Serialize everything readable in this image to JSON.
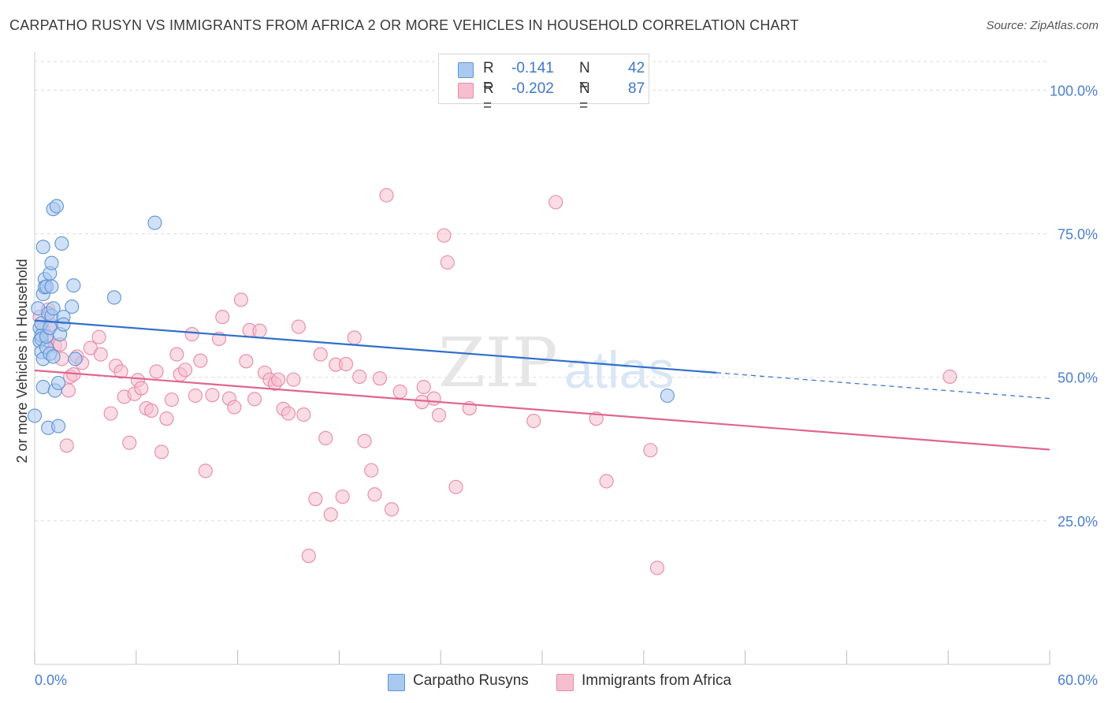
{
  "title": "CARPATHO RUSYN VS IMMIGRANTS FROM AFRICA 2 OR MORE VEHICLES IN HOUSEHOLD CORRELATION CHART",
  "source": "Source: ZipAtlas.com",
  "watermark": {
    "zip": "ZIP",
    "atlas": "atlas"
  },
  "colors": {
    "blue_fill": "#a9c9f0",
    "blue_stroke": "#5f93d6",
    "blue_line": "#2f6fcb",
    "pink_fill": "#f5bfd0",
    "pink_stroke": "#e889a8",
    "pink_line": "#e06590",
    "tick_label": "#4a7fcf",
    "grid": "#dcdcdc"
  },
  "legend_top": [
    {
      "series": "Carpatho Rusyns",
      "r_label": "R =",
      "r_value": "-0.141",
      "n_label": "N =",
      "n_value": "42"
    },
    {
      "series": "Immigrants from Africa",
      "r_label": "R =",
      "r_value": "-0.202",
      "n_label": "N =",
      "n_value": "87"
    }
  ],
  "chart_data": {
    "type": "scatter",
    "title": "CARPATHO RUSYN VS IMMIGRANTS FROM AFRICA 2 OR MORE VEHICLES IN HOUSEHOLD CORRELATION CHART",
    "xlabel": "",
    "ylabel": "2 or more Vehicles in Household",
    "xlim": [
      0,
      60
    ],
    "ylim": [
      0,
      105
    ],
    "x_tick_labels": [
      "0.0%",
      "60.0%"
    ],
    "y_ticks": [
      25,
      50,
      75,
      100
    ],
    "y_tick_labels": [
      "25.0%",
      "50.0%",
      "75.0%",
      "100.0%"
    ],
    "grid": true,
    "legend_position": "bottom",
    "series": [
      {
        "name": "Carpatho Rusyns",
        "color": "blue",
        "trend": {
          "x0": 0,
          "y0": 59.9,
          "x1": 40.3,
          "y1": 50.8,
          "dashed_to_x": 60,
          "dashed_to_y": 46.3
        },
        "points": [
          [
            0.0,
            43.3
          ],
          [
            0.2,
            62.0
          ],
          [
            0.3,
            56.3
          ],
          [
            0.3,
            58.6
          ],
          [
            0.4,
            57.3
          ],
          [
            0.4,
            59.4
          ],
          [
            0.4,
            56.7
          ],
          [
            0.4,
            54.4
          ],
          [
            0.5,
            48.3
          ],
          [
            0.5,
            53.2
          ],
          [
            0.5,
            64.5
          ],
          [
            0.5,
            72.7
          ],
          [
            0.6,
            67.1
          ],
          [
            0.6,
            65.7
          ],
          [
            0.7,
            65.8
          ],
          [
            0.7,
            55.2
          ],
          [
            0.7,
            57.1
          ],
          [
            0.8,
            61.1
          ],
          [
            0.8,
            41.2
          ],
          [
            0.9,
            68.1
          ],
          [
            0.9,
            58.6
          ],
          [
            0.9,
            54.1
          ],
          [
            1.0,
            60.7
          ],
          [
            1.0,
            69.9
          ],
          [
            1.0,
            65.8
          ],
          [
            1.1,
            62.0
          ],
          [
            1.1,
            79.3
          ],
          [
            1.1,
            53.6
          ],
          [
            1.2,
            47.7
          ],
          [
            1.3,
            79.8
          ],
          [
            1.4,
            41.5
          ],
          [
            1.4,
            49.0
          ],
          [
            1.5,
            57.5
          ],
          [
            1.6,
            73.3
          ],
          [
            1.7,
            60.5
          ],
          [
            1.7,
            59.2
          ],
          [
            2.2,
            62.3
          ],
          [
            2.3,
            66.0
          ],
          [
            2.4,
            53.2
          ],
          [
            4.7,
            63.9
          ],
          [
            7.1,
            76.9
          ],
          [
            37.4,
            46.8
          ]
        ]
      },
      {
        "name": "Immigrants from Africa",
        "color": "pink",
        "trend": {
          "x0": 0,
          "y0": 51.2,
          "x1": 60,
          "y1": 37.4
        },
        "points": [
          [
            0.3,
            60.5
          ],
          [
            0.5,
            58.3
          ],
          [
            0.7,
            56.5
          ],
          [
            0.8,
            61.8
          ],
          [
            1.0,
            59.1
          ],
          [
            1.2,
            55.5
          ],
          [
            1.5,
            55.7
          ],
          [
            1.6,
            53.2
          ],
          [
            1.9,
            38.1
          ],
          [
            2.0,
            47.7
          ],
          [
            2.1,
            50.1
          ],
          [
            2.3,
            50.5
          ],
          [
            2.5,
            53.6
          ],
          [
            2.8,
            52.5
          ],
          [
            3.3,
            55.1
          ],
          [
            3.8,
            57.0
          ],
          [
            3.9,
            54.0
          ],
          [
            4.5,
            43.7
          ],
          [
            4.8,
            52.0
          ],
          [
            5.1,
            51.0
          ],
          [
            5.3,
            46.6
          ],
          [
            5.6,
            38.6
          ],
          [
            5.9,
            47.1
          ],
          [
            6.1,
            49.5
          ],
          [
            6.3,
            48.1
          ],
          [
            6.6,
            44.6
          ],
          [
            6.9,
            44.2
          ],
          [
            7.2,
            51.0
          ],
          [
            7.5,
            37.0
          ],
          [
            7.8,
            42.8
          ],
          [
            8.1,
            46.1
          ],
          [
            8.4,
            54.0
          ],
          [
            8.6,
            50.5
          ],
          [
            8.9,
            51.3
          ],
          [
            9.3,
            57.5
          ],
          [
            9.5,
            46.8
          ],
          [
            9.8,
            52.9
          ],
          [
            10.1,
            33.7
          ],
          [
            10.5,
            46.9
          ],
          [
            10.9,
            56.7
          ],
          [
            11.1,
            60.5
          ],
          [
            11.5,
            46.3
          ],
          [
            11.8,
            44.8
          ],
          [
            12.2,
            63.5
          ],
          [
            12.5,
            52.8
          ],
          [
            12.7,
            58.2
          ],
          [
            13.0,
            46.2
          ],
          [
            13.3,
            58.1
          ],
          [
            13.6,
            50.8
          ],
          [
            13.9,
            49.6
          ],
          [
            14.2,
            48.9
          ],
          [
            14.4,
            49.6
          ],
          [
            14.7,
            44.5
          ],
          [
            15.0,
            43.7
          ],
          [
            15.3,
            49.6
          ],
          [
            15.6,
            58.8
          ],
          [
            15.9,
            43.5
          ],
          [
            16.2,
            18.9
          ],
          [
            16.6,
            28.8
          ],
          [
            16.9,
            54.0
          ],
          [
            17.2,
            39.4
          ],
          [
            17.5,
            26.1
          ],
          [
            17.8,
            52.2
          ],
          [
            18.2,
            29.2
          ],
          [
            18.4,
            52.3
          ],
          [
            18.9,
            56.9
          ],
          [
            19.2,
            50.1
          ],
          [
            19.5,
            38.9
          ],
          [
            19.9,
            33.8
          ],
          [
            20.1,
            29.6
          ],
          [
            20.4,
            49.8
          ],
          [
            20.8,
            81.7
          ],
          [
            21.1,
            27.0
          ],
          [
            21.6,
            47.5
          ],
          [
            22.9,
            45.7
          ],
          [
            23.0,
            48.3
          ],
          [
            23.6,
            46.3
          ],
          [
            23.9,
            43.4
          ],
          [
            24.2,
            74.7
          ],
          [
            24.4,
            70.0
          ],
          [
            24.9,
            30.9
          ],
          [
            25.7,
            44.6
          ],
          [
            29.5,
            42.4
          ],
          [
            30.8,
            80.5
          ],
          [
            33.2,
            42.8
          ],
          [
            33.8,
            31.9
          ],
          [
            36.4,
            37.3
          ],
          [
            36.8,
            16.8
          ],
          [
            54.1,
            50.1
          ]
        ]
      }
    ]
  }
}
